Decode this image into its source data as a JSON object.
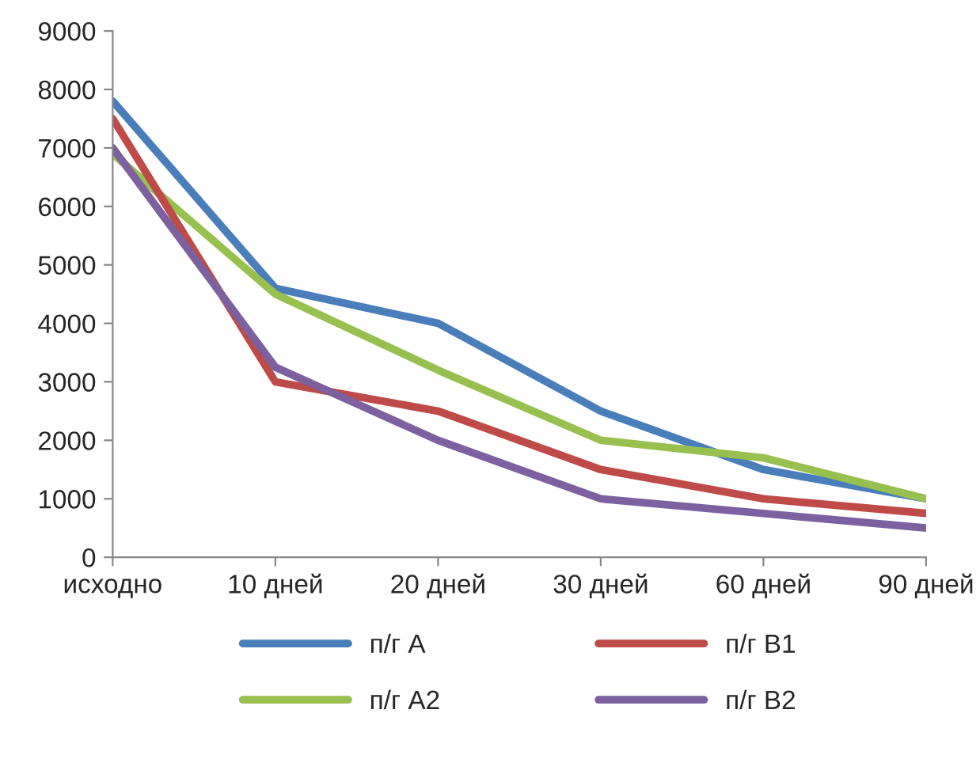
{
  "chart_data": {
    "type": "line",
    "categories": [
      "исходно",
      "10 дней",
      "20 дней",
      "30 дней",
      "60 дней",
      "90 дней"
    ],
    "series": [
      {
        "name": "п/г А",
        "color": "#4a7ebb",
        "values": [
          7800,
          4600,
          4000,
          2500,
          1500,
          1000
        ]
      },
      {
        "name": "п/г А2",
        "color": "#98c04f",
        "values": [
          6900,
          4500,
          3200,
          2000,
          1700,
          1000
        ]
      },
      {
        "name": "п/г В1",
        "color": "#be4b48",
        "values": [
          7500,
          3000,
          2500,
          1500,
          1000,
          750
        ]
      },
      {
        "name": "п/г В2",
        "color": "#7d60a0",
        "values": [
          7000,
          3250,
          2000,
          1000,
          750,
          500
        ]
      }
    ],
    "ylim": [
      0,
      9000
    ],
    "yticks": [
      0,
      1000,
      2000,
      3000,
      4000,
      5000,
      6000,
      7000,
      8000,
      9000
    ],
    "grid": false,
    "legend": "bottom",
    "marker": "none",
    "line_style": "solid"
  }
}
